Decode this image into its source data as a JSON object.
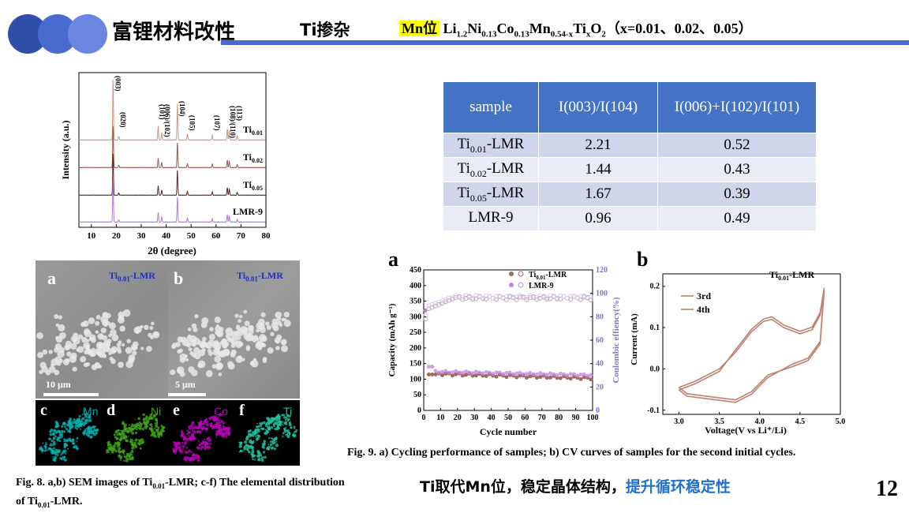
{
  "header": {
    "title": "富锂材料改性",
    "subtitle": "Ti掺杂",
    "mn_site": "Mn位",
    "formula": {
      "li": "Li",
      "li_sub": "1.2",
      "ni": "Ni",
      "ni_sub": "0.13",
      "co": "Co",
      "co_sub": "0.13",
      "mn": "Mn",
      "mn_sub": "0.54-x",
      "ti": "Ti",
      "ti_sub": "x",
      "o": "O",
      "o_sub": "2",
      "x_values": "（x=0.01、0.02、0.05）"
    }
  },
  "colors": {
    "accent_blue": "#4472c4",
    "circle_1": "#2f4fa8",
    "circle_2": "#4a6ad0",
    "circle_3": "#6a86e0",
    "highlight_text": "#1f6fd0"
  },
  "xrd": {
    "ylabel": "Intensity (a.u.)",
    "xlabel": "2θ (degree)",
    "xticks": [
      "10",
      "20",
      "30",
      "40",
      "50",
      "60",
      "70",
      "80"
    ],
    "peaks": [
      "(003)",
      "(020)",
      "(101)",
      "(006)/(102)",
      "(104)",
      "(105)",
      "(107)",
      "(108)/(110)",
      "(113)"
    ],
    "series": [
      {
        "name_base": "Ti",
        "name_sub": "0.01",
        "color": "#c89a8a"
      },
      {
        "name_base": "Ti",
        "name_sub": "0.02",
        "color": "#9b5a55"
      },
      {
        "name_base": "Ti",
        "name_sub": "0.05",
        "color": "#5a2a26"
      },
      {
        "name_base": "LMR-9",
        "name_sub": "",
        "color": "#b07ad8"
      }
    ]
  },
  "ratio_table": {
    "headers": [
      "sample",
      "I(003)/I(104)",
      "I(006)+I(102)/I(101)"
    ],
    "rows": [
      {
        "name": "Ti",
        "sub": "0.01",
        "suffix": "-LMR",
        "r1": "2.21",
        "r2": "0.52"
      },
      {
        "name": "Ti",
        "sub": "0.02",
        "suffix": "-LMR",
        "r1": "1.44",
        "r2": "0.43"
      },
      {
        "name": "Ti",
        "sub": "0.05",
        "suffix": "-LMR",
        "r1": "1.67",
        "r2": "0.39"
      },
      {
        "name": "LMR-9",
        "sub": "",
        "suffix": "",
        "r1": "0.96",
        "r2": "0.49"
      }
    ]
  },
  "sem": {
    "panel_a": "a",
    "panel_b": "b",
    "sample_base": "Ti",
    "sample_sub": "0.01",
    "sample_suffix": "-LMR",
    "scale_a": "10 μm",
    "scale_b": "5 μm",
    "eds": [
      {
        "letter": "c",
        "element": "Mn",
        "color": "#00b0b0"
      },
      {
        "letter": "d",
        "element": "Ni",
        "color": "#3fa81a"
      },
      {
        "letter": "e",
        "element": "Co",
        "color": "#c000c0"
      },
      {
        "letter": "f",
        "element": "Ti",
        "color": "#20c0a0"
      }
    ]
  },
  "fig8_caption": {
    "text1": "Fig. 8. a,b) SEM images of Ti",
    "sub1": "0.01",
    "text2": "-LMR; c-f) The elemental distribution of Ti",
    "sub2": "0.01",
    "text3": "-LMR."
  },
  "cycling": {
    "panel": "a",
    "ylabel_left": "Capacity (mAh g⁻¹)",
    "ylabel_right": "Coulombic effiency(%)",
    "xlabel": "Cycle number",
    "yticks_left": [
      "0",
      "50",
      "100",
      "150",
      "200",
      "250",
      "300",
      "350",
      "400",
      "450"
    ],
    "yticks_right": [
      "0",
      "20",
      "40",
      "60",
      "80",
      "100",
      "120"
    ],
    "xticks": [
      "0",
      "10",
      "20",
      "30",
      "40",
      "50",
      "60",
      "70",
      "80",
      "90",
      "100"
    ],
    "legend": [
      {
        "base": "Ti",
        "sub": "0.01",
        "suffix": "-LMR",
        "color": "#a06a60"
      },
      {
        "base": "LMR-9",
        "sub": "",
        "suffix": "",
        "color": "#c08ae0"
      }
    ]
  },
  "cv": {
    "panel": "b",
    "title_base": "Ti",
    "title_sub": "0.01",
    "title_suffix": "-LMR",
    "ylabel": "Current (mA)",
    "xlabel": "Voltage(V vs Li⁺/Li)",
    "yticks": [
      "-0.1",
      "0.0",
      "0.1",
      "0.2"
    ],
    "xticks": [
      "3.0",
      "3.5",
      "4.0",
      "4.5",
      "5.0"
    ],
    "legend": [
      "3rd",
      "4th"
    ],
    "line_color": "#c08070"
  },
  "fig9_caption": "Fig. 9. a) Cycling performance of samples;  b) CV curves of samples for the second initial cycles.",
  "conclusion": {
    "part1": "Ti取代Mn位，稳定晶体结构，",
    "part2": "提升循环稳定性"
  },
  "page_number": "12"
}
